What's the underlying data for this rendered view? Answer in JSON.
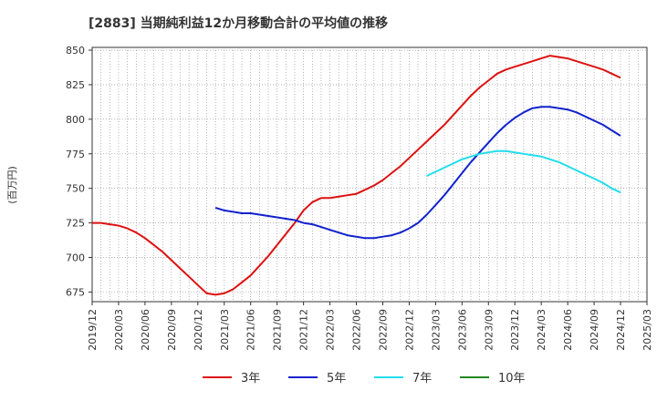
{
  "chart_data": {
    "type": "line",
    "title": "[2883]  当期純利益12か月移動合計の平均値の推移",
    "ylabel": "(百万円)",
    "xlabel": "",
    "ylim": [
      668,
      852
    ],
    "yticks": [
      675,
      700,
      725,
      750,
      775,
      800,
      825,
      850
    ],
    "x_tick_labels": [
      "2019/12",
      "2020/03",
      "2020/06",
      "2020/09",
      "2020/12",
      "2021/03",
      "2021/06",
      "2021/09",
      "2021/12",
      "2022/03",
      "2022/06",
      "2022/09",
      "2022/12",
      "2023/03",
      "2023/06",
      "2023/09",
      "2023/12",
      "2024/03",
      "2024/06",
      "2024/09",
      "2024/12",
      "2025/03"
    ],
    "grid": true,
    "legend_position": "bottom",
    "series": [
      {
        "name": "3年",
        "color": "#dd1111",
        "points": [
          [
            "2019/12",
            725
          ],
          [
            "2020/01",
            725
          ],
          [
            "2020/02",
            724
          ],
          [
            "2020/03",
            723
          ],
          [
            "2020/04",
            721
          ],
          [
            "2020/05",
            718
          ],
          [
            "2020/06",
            714
          ],
          [
            "2020/07",
            709
          ],
          [
            "2020/08",
            704
          ],
          [
            "2020/09",
            698
          ],
          [
            "2020/10",
            692
          ],
          [
            "2020/11",
            686
          ],
          [
            "2020/12",
            680
          ],
          [
            "2021/01",
            674
          ],
          [
            "2021/02",
            673
          ],
          [
            "2021/03",
            674
          ],
          [
            "2021/04",
            677
          ],
          [
            "2021/05",
            682
          ],
          [
            "2021/06",
            687
          ],
          [
            "2021/07",
            694
          ],
          [
            "2021/08",
            701
          ],
          [
            "2021/09",
            709
          ],
          [
            "2021/10",
            717
          ],
          [
            "2021/11",
            725
          ],
          [
            "2021/12",
            734
          ],
          [
            "2022/01",
            740
          ],
          [
            "2022/02",
            743
          ],
          [
            "2022/03",
            743
          ],
          [
            "2022/04",
            744
          ],
          [
            "2022/05",
            745
          ],
          [
            "2022/06",
            746
          ],
          [
            "2022/07",
            749
          ],
          [
            "2022/08",
            752
          ],
          [
            "2022/09",
            756
          ],
          [
            "2022/10",
            761
          ],
          [
            "2022/11",
            766
          ],
          [
            "2022/12",
            772
          ],
          [
            "2023/01",
            778
          ],
          [
            "2023/02",
            784
          ],
          [
            "2023/03",
            790
          ],
          [
            "2023/04",
            796
          ],
          [
            "2023/05",
            803
          ],
          [
            "2023/06",
            810
          ],
          [
            "2023/07",
            817
          ],
          [
            "2023/08",
            823
          ],
          [
            "2023/09",
            828
          ],
          [
            "2023/10",
            833
          ],
          [
            "2023/11",
            836
          ],
          [
            "2023/12",
            838
          ],
          [
            "2024/01",
            840
          ],
          [
            "2024/02",
            842
          ],
          [
            "2024/03",
            844
          ],
          [
            "2024/04",
            846
          ],
          [
            "2024/05",
            845
          ],
          [
            "2024/06",
            844
          ],
          [
            "2024/07",
            842
          ],
          [
            "2024/08",
            840
          ],
          [
            "2024/09",
            838
          ],
          [
            "2024/10",
            836
          ],
          [
            "2024/11",
            833
          ],
          [
            "2024/12",
            830
          ]
        ]
      },
      {
        "name": "5年",
        "color": "#1122cc",
        "points": [
          [
            "2021/02",
            736
          ],
          [
            "2021/03",
            734
          ],
          [
            "2021/04",
            733
          ],
          [
            "2021/05",
            732
          ],
          [
            "2021/06",
            732
          ],
          [
            "2021/07",
            731
          ],
          [
            "2021/08",
            730
          ],
          [
            "2021/09",
            729
          ],
          [
            "2021/10",
            728
          ],
          [
            "2021/11",
            727
          ],
          [
            "2021/12",
            725
          ],
          [
            "2022/01",
            724
          ],
          [
            "2022/02",
            722
          ],
          [
            "2022/03",
            720
          ],
          [
            "2022/04",
            718
          ],
          [
            "2022/05",
            716
          ],
          [
            "2022/06",
            715
          ],
          [
            "2022/07",
            714
          ],
          [
            "2022/08",
            714
          ],
          [
            "2022/09",
            715
          ],
          [
            "2022/10",
            716
          ],
          [
            "2022/11",
            718
          ],
          [
            "2022/12",
            721
          ],
          [
            "2023/01",
            725
          ],
          [
            "2023/02",
            731
          ],
          [
            "2023/03",
            738
          ],
          [
            "2023/04",
            745
          ],
          [
            "2023/05",
            753
          ],
          [
            "2023/06",
            761
          ],
          [
            "2023/07",
            769
          ],
          [
            "2023/08",
            776
          ],
          [
            "2023/09",
            783
          ],
          [
            "2023/10",
            790
          ],
          [
            "2023/11",
            796
          ],
          [
            "2023/12",
            801
          ],
          [
            "2024/01",
            805
          ],
          [
            "2024/02",
            808
          ],
          [
            "2024/03",
            809
          ],
          [
            "2024/04",
            809
          ],
          [
            "2024/05",
            808
          ],
          [
            "2024/06",
            807
          ],
          [
            "2024/07",
            805
          ],
          [
            "2024/08",
            802
          ],
          [
            "2024/09",
            799
          ],
          [
            "2024/10",
            796
          ],
          [
            "2024/11",
            792
          ],
          [
            "2024/12",
            788
          ]
        ]
      },
      {
        "name": "7年",
        "color": "#22ddee",
        "points": [
          [
            "2023/02",
            759
          ],
          [
            "2023/03",
            762
          ],
          [
            "2023/04",
            765
          ],
          [
            "2023/05",
            768
          ],
          [
            "2023/06",
            771
          ],
          [
            "2023/07",
            773
          ],
          [
            "2023/08",
            775
          ],
          [
            "2023/09",
            776
          ],
          [
            "2023/10",
            777
          ],
          [
            "2023/11",
            777
          ],
          [
            "2023/12",
            776
          ],
          [
            "2024/01",
            775
          ],
          [
            "2024/02",
            774
          ],
          [
            "2024/03",
            773
          ],
          [
            "2024/04",
            771
          ],
          [
            "2024/05",
            769
          ],
          [
            "2024/06",
            766
          ],
          [
            "2024/07",
            763
          ],
          [
            "2024/08",
            760
          ],
          [
            "2024/09",
            757
          ],
          [
            "2024/10",
            754
          ],
          [
            "2024/11",
            750
          ],
          [
            "2024/12",
            747
          ]
        ]
      },
      {
        "name": "10年",
        "color": "#228822",
        "points": []
      }
    ]
  }
}
